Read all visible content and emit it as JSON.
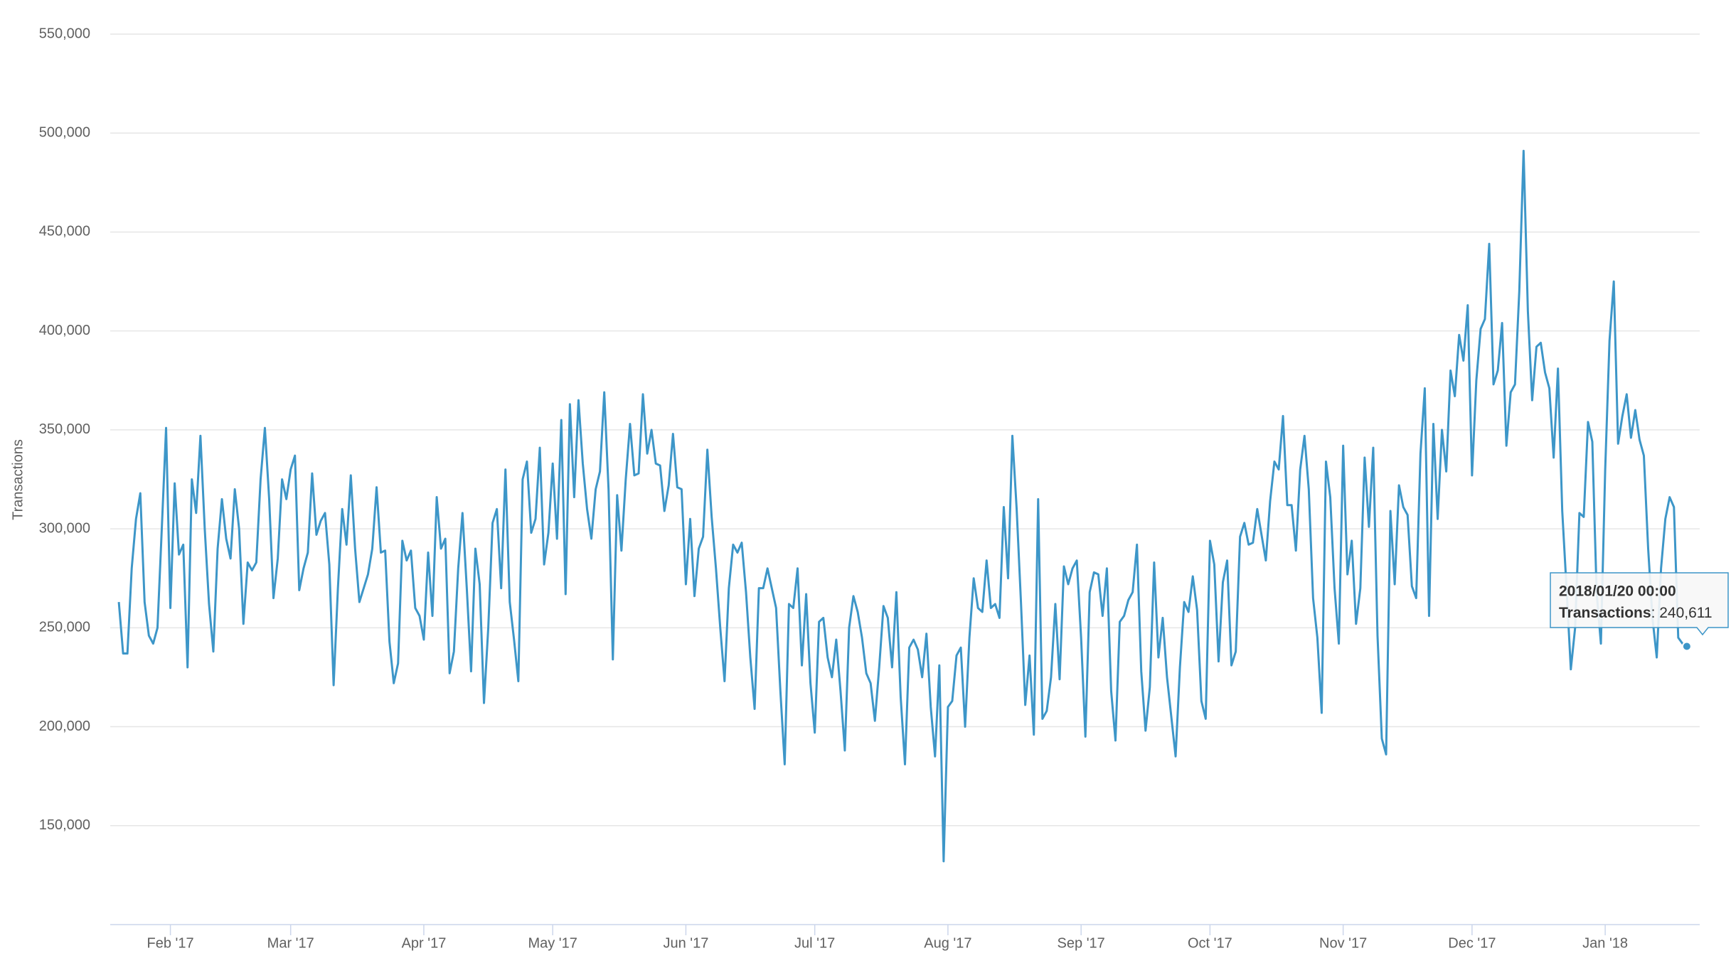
{
  "chart_data": {
    "type": "line",
    "y_label": "Transactions",
    "x": [
      "2017-01-20",
      "2017-01-21",
      "2017-01-22",
      "2017-01-23",
      "2017-01-24",
      "2017-01-25",
      "2017-01-26",
      "2017-01-27",
      "2017-01-28",
      "2017-01-29",
      "2017-01-30",
      "2017-01-31",
      "2017-02-01",
      "2017-02-02",
      "2017-02-03",
      "2017-02-04",
      "2017-02-05",
      "2017-02-06",
      "2017-02-07",
      "2017-02-08",
      "2017-02-09",
      "2017-02-10",
      "2017-02-11",
      "2017-02-12",
      "2017-02-13",
      "2017-02-14",
      "2017-02-15",
      "2017-02-16",
      "2017-02-17",
      "2017-02-18",
      "2017-02-19",
      "2017-02-20",
      "2017-02-21",
      "2017-02-22",
      "2017-02-23",
      "2017-02-24",
      "2017-02-25",
      "2017-02-26",
      "2017-02-27",
      "2017-02-28",
      "2017-03-01",
      "2017-03-02",
      "2017-03-03",
      "2017-03-04",
      "2017-03-05",
      "2017-03-06",
      "2017-03-07",
      "2017-03-08",
      "2017-03-09",
      "2017-03-10",
      "2017-03-11",
      "2017-03-12",
      "2017-03-13",
      "2017-03-14",
      "2017-03-15",
      "2017-03-16",
      "2017-03-17",
      "2017-03-18",
      "2017-03-19",
      "2017-03-20",
      "2017-03-21",
      "2017-03-22",
      "2017-03-23",
      "2017-03-24",
      "2017-03-25",
      "2017-03-26",
      "2017-03-27",
      "2017-03-28",
      "2017-03-29",
      "2017-03-30",
      "2017-03-31",
      "2017-04-01",
      "2017-04-02",
      "2017-04-03",
      "2017-04-04",
      "2017-04-05",
      "2017-04-06",
      "2017-04-07",
      "2017-04-08",
      "2017-04-09",
      "2017-04-10",
      "2017-04-11",
      "2017-04-12",
      "2017-04-13",
      "2017-04-14",
      "2017-04-15",
      "2017-04-16",
      "2017-04-17",
      "2017-04-18",
      "2017-04-19",
      "2017-04-20",
      "2017-04-21",
      "2017-04-22",
      "2017-04-23",
      "2017-04-24",
      "2017-04-25",
      "2017-04-26",
      "2017-04-27",
      "2017-04-28",
      "2017-04-29",
      "2017-04-30",
      "2017-05-01",
      "2017-05-02",
      "2017-05-03",
      "2017-05-04",
      "2017-05-05",
      "2017-05-06",
      "2017-05-07",
      "2017-05-08",
      "2017-05-09",
      "2017-05-10",
      "2017-05-11",
      "2017-05-12",
      "2017-05-13",
      "2017-05-14",
      "2017-05-15",
      "2017-05-16",
      "2017-05-17",
      "2017-05-18",
      "2017-05-19",
      "2017-05-20",
      "2017-05-21",
      "2017-05-22",
      "2017-05-23",
      "2017-05-24",
      "2017-05-25",
      "2017-05-26",
      "2017-05-27",
      "2017-05-28",
      "2017-05-29",
      "2017-05-30",
      "2017-05-31",
      "2017-06-01",
      "2017-06-02",
      "2017-06-03",
      "2017-06-04",
      "2017-06-05",
      "2017-06-06",
      "2017-06-07",
      "2017-06-08",
      "2017-06-09",
      "2017-06-10",
      "2017-06-11",
      "2017-06-12",
      "2017-06-13",
      "2017-06-14",
      "2017-06-15",
      "2017-06-16",
      "2017-06-17",
      "2017-06-18",
      "2017-06-19",
      "2017-06-20",
      "2017-06-21",
      "2017-06-22",
      "2017-06-23",
      "2017-06-24",
      "2017-06-25",
      "2017-06-26",
      "2017-06-27",
      "2017-06-28",
      "2017-06-29",
      "2017-06-30",
      "2017-07-01",
      "2017-07-02",
      "2017-07-03",
      "2017-07-04",
      "2017-07-05",
      "2017-07-06",
      "2017-07-07",
      "2017-07-08",
      "2017-07-09",
      "2017-07-10",
      "2017-07-11",
      "2017-07-12",
      "2017-07-13",
      "2017-07-14",
      "2017-07-15",
      "2017-07-16",
      "2017-07-17",
      "2017-07-18",
      "2017-07-19",
      "2017-07-20",
      "2017-07-21",
      "2017-07-22",
      "2017-07-23",
      "2017-07-24",
      "2017-07-25",
      "2017-07-26",
      "2017-07-27",
      "2017-07-28",
      "2017-07-29",
      "2017-07-30",
      "2017-07-31",
      "2017-08-01",
      "2017-08-02",
      "2017-08-03",
      "2017-08-04",
      "2017-08-05",
      "2017-08-06",
      "2017-08-07",
      "2017-08-08",
      "2017-08-09",
      "2017-08-10",
      "2017-08-11",
      "2017-08-12",
      "2017-08-13",
      "2017-08-14",
      "2017-08-15",
      "2017-08-16",
      "2017-08-17",
      "2017-08-18",
      "2017-08-19",
      "2017-08-20",
      "2017-08-21",
      "2017-08-22",
      "2017-08-23",
      "2017-08-24",
      "2017-08-25",
      "2017-08-26",
      "2017-08-27",
      "2017-08-28",
      "2017-08-29",
      "2017-08-30",
      "2017-08-31",
      "2017-09-01",
      "2017-09-02",
      "2017-09-03",
      "2017-09-04",
      "2017-09-05",
      "2017-09-06",
      "2017-09-07",
      "2017-09-08",
      "2017-09-09",
      "2017-09-10",
      "2017-09-11",
      "2017-09-12",
      "2017-09-13",
      "2017-09-14",
      "2017-09-15",
      "2017-09-16",
      "2017-09-17",
      "2017-09-18",
      "2017-09-19",
      "2017-09-20",
      "2017-09-21",
      "2017-09-22",
      "2017-09-23",
      "2017-09-24",
      "2017-09-25",
      "2017-09-26",
      "2017-09-27",
      "2017-09-28",
      "2017-09-29",
      "2017-09-30",
      "2017-10-01",
      "2017-10-02",
      "2017-10-03",
      "2017-10-04",
      "2017-10-05",
      "2017-10-06",
      "2017-10-07",
      "2017-10-08",
      "2017-10-09",
      "2017-10-10",
      "2017-10-11",
      "2017-10-12",
      "2017-10-13",
      "2017-10-14",
      "2017-10-15",
      "2017-10-16",
      "2017-10-17",
      "2017-10-18",
      "2017-10-19",
      "2017-10-20",
      "2017-10-21",
      "2017-10-22",
      "2017-10-23",
      "2017-10-24",
      "2017-10-25",
      "2017-10-26",
      "2017-10-27",
      "2017-10-28",
      "2017-10-29",
      "2017-10-30",
      "2017-10-31",
      "2017-11-01",
      "2017-11-02",
      "2017-11-03",
      "2017-11-04",
      "2017-11-05",
      "2017-11-06",
      "2017-11-07",
      "2017-11-08",
      "2017-11-09",
      "2017-11-10",
      "2017-11-11",
      "2017-11-12",
      "2017-11-13",
      "2017-11-14",
      "2017-11-15",
      "2017-11-16",
      "2017-11-17",
      "2017-11-18",
      "2017-11-19",
      "2017-11-20",
      "2017-11-21",
      "2017-11-22",
      "2017-11-23",
      "2017-11-24",
      "2017-11-25",
      "2017-11-26",
      "2017-11-27",
      "2017-11-28",
      "2017-11-29",
      "2017-11-30",
      "2017-12-01",
      "2017-12-02",
      "2017-12-03",
      "2017-12-04",
      "2017-12-05",
      "2017-12-06",
      "2017-12-07",
      "2017-12-08",
      "2017-12-09",
      "2017-12-10",
      "2017-12-11",
      "2017-12-12",
      "2017-12-13",
      "2017-12-14",
      "2017-12-15",
      "2017-12-16",
      "2017-12-17",
      "2017-12-18",
      "2017-12-19",
      "2017-12-20",
      "2017-12-21",
      "2017-12-22",
      "2017-12-23",
      "2017-12-24",
      "2017-12-25",
      "2017-12-26",
      "2017-12-27",
      "2017-12-28",
      "2017-12-29",
      "2017-12-30",
      "2017-12-31",
      "2018-01-01",
      "2018-01-02",
      "2018-01-03",
      "2018-01-04",
      "2018-01-05",
      "2018-01-06",
      "2018-01-07",
      "2018-01-08",
      "2018-01-09",
      "2018-01-10",
      "2018-01-11",
      "2018-01-12",
      "2018-01-13",
      "2018-01-14",
      "2018-01-15",
      "2018-01-16",
      "2018-01-17",
      "2018-01-18",
      "2018-01-19",
      "2018-01-20"
    ],
    "series": [
      {
        "name": "Transactions",
        "color": "#3d96c8",
        "values": [
          263000,
          237000,
          237000,
          280000,
          305000,
          318000,
          263000,
          246000,
          242000,
          250000,
          300000,
          351000,
          260000,
          323000,
          287000,
          292000,
          230000,
          325000,
          308000,
          347000,
          300000,
          262000,
          238000,
          290000,
          315000,
          295000,
          285000,
          320000,
          300000,
          252000,
          283000,
          279000,
          283000,
          325000,
          351000,
          315000,
          265000,
          285000,
          325000,
          315000,
          330000,
          337000,
          269000,
          280000,
          288000,
          328000,
          297000,
          304000,
          308000,
          282000,
          221000,
          270000,
          310000,
          292000,
          327000,
          290000,
          263000,
          270000,
          277000,
          290000,
          321000,
          288000,
          289000,
          243000,
          222000,
          232000,
          294000,
          284000,
          289000,
          260000,
          256000,
          244000,
          288000,
          256000,
          316000,
          290000,
          295000,
          227000,
          238000,
          280000,
          308000,
          270000,
          228000,
          290000,
          272000,
          212000,
          250000,
          303000,
          310000,
          270000,
          330000,
          263000,
          244000,
          223000,
          325000,
          334000,
          298000,
          305000,
          341000,
          282000,
          298000,
          333000,
          295000,
          355000,
          267000,
          363000,
          316000,
          365000,
          333000,
          310000,
          295000,
          320000,
          329000,
          369000,
          320000,
          234000,
          317000,
          289000,
          325000,
          353000,
          327000,
          328000,
          368000,
          338000,
          350000,
          333000,
          332000,
          309000,
          322000,
          348000,
          321000,
          320000,
          272000,
          305000,
          266000,
          290000,
          296000,
          340000,
          306000,
          280000,
          250000,
          223000,
          270000,
          292000,
          288000,
          293000,
          268000,
          235000,
          209000,
          270000,
          270000,
          280000,
          270000,
          260000,
          218000,
          181000,
          262000,
          260000,
          280000,
          231000,
          267000,
          222000,
          197000,
          253000,
          255000,
          235000,
          225000,
          244000,
          218000,
          188000,
          250000,
          266000,
          258000,
          245000,
          227000,
          222000,
          203000,
          230000,
          261000,
          255000,
          230000,
          268000,
          215000,
          181000,
          240000,
          244000,
          239000,
          225000,
          247000,
          210000,
          185000,
          231000,
          132000,
          210000,
          213000,
          236000,
          240000,
          200000,
          245000,
          275000,
          260000,
          258000,
          284000,
          260000,
          262000,
          255000,
          311000,
          275000,
          347000,
          310000,
          263000,
          211000,
          236000,
          196000,
          315000,
          204000,
          208000,
          225000,
          262000,
          224000,
          281000,
          272000,
          280000,
          284000,
          245000,
          195000,
          268000,
          278000,
          277000,
          256000,
          280000,
          218000,
          193000,
          253000,
          256000,
          264000,
          268000,
          292000,
          228000,
          198000,
          220000,
          283000,
          235000,
          255000,
          225000,
          205000,
          185000,
          230000,
          263000,
          258000,
          276000,
          259000,
          213000,
          204000,
          294000,
          282000,
          233000,
          273000,
          284000,
          231000,
          238000,
          296000,
          303000,
          292000,
          293000,
          310000,
          297000,
          284000,
          314000,
          334000,
          330000,
          357000,
          312000,
          312000,
          289000,
          330000,
          347000,
          320000,
          265000,
          245000,
          207000,
          334000,
          316000,
          270000,
          242000,
          342000,
          277000,
          294000,
          252000,
          270000,
          336000,
          301000,
          341000,
          246000,
          194000,
          186000,
          309000,
          272000,
          322000,
          311000,
          307000,
          271000,
          265000,
          338000,
          371000,
          256000,
          353000,
          305000,
          350000,
          329000,
          380000,
          367000,
          398000,
          385000,
          413000,
          327000,
          375000,
          401000,
          406000,
          444000,
          373000,
          380000,
          404000,
          342000,
          369000,
          373000,
          420000,
          491000,
          410000,
          365000,
          392000,
          394000,
          379000,
          371000,
          336000,
          381000,
          309000,
          270000,
          229000,
          250000,
          308000,
          306000,
          354000,
          344000,
          268000,
          242000,
          330000,
          395000,
          425000,
          343000,
          357000,
          368000,
          346000,
          360000,
          345000,
          337000,
          290000,
          255000,
          235000,
          280000,
          305000,
          316000,
          311000,
          245000,
          242000,
          240611
        ]
      }
    ],
    "xlim": [
      "2017-01-18",
      "2018-01-23"
    ],
    "xticks": [
      {
        "value": "2017-02-01",
        "label": "Feb '17"
      },
      {
        "value": "2017-03-01",
        "label": "Mar '17"
      },
      {
        "value": "2017-04-01",
        "label": "Apr '17"
      },
      {
        "value": "2017-05-01",
        "label": "May '17"
      },
      {
        "value": "2017-06-01",
        "label": "Jun '17"
      },
      {
        "value": "2017-07-01",
        "label": "Jul '17"
      },
      {
        "value": "2017-08-01",
        "label": "Aug '17"
      },
      {
        "value": "2017-09-01",
        "label": "Sep '17"
      },
      {
        "value": "2017-10-01",
        "label": "Oct '17"
      },
      {
        "value": "2017-11-01",
        "label": "Nov '17"
      },
      {
        "value": "2017-12-01",
        "label": "Dec '17"
      },
      {
        "value": "2018-01-01",
        "label": "Jan '18"
      }
    ],
    "ylim": [
      100000,
      550000
    ],
    "yticks": [
      {
        "value": 150000,
        "label": "150,000"
      },
      {
        "value": 200000,
        "label": "200,000"
      },
      {
        "value": 250000,
        "label": "250,000"
      },
      {
        "value": 300000,
        "label": "300,000"
      },
      {
        "value": 350000,
        "label": "350,000"
      },
      {
        "value": 400000,
        "label": "400,000"
      },
      {
        "value": 450000,
        "label": "450,000"
      },
      {
        "value": 500000,
        "label": "500,000"
      },
      {
        "value": 550000,
        "label": "550,000"
      }
    ],
    "grid": true,
    "tooltip": {
      "title": "2018/01/20 00:00",
      "value_label": "240,611"
    }
  }
}
